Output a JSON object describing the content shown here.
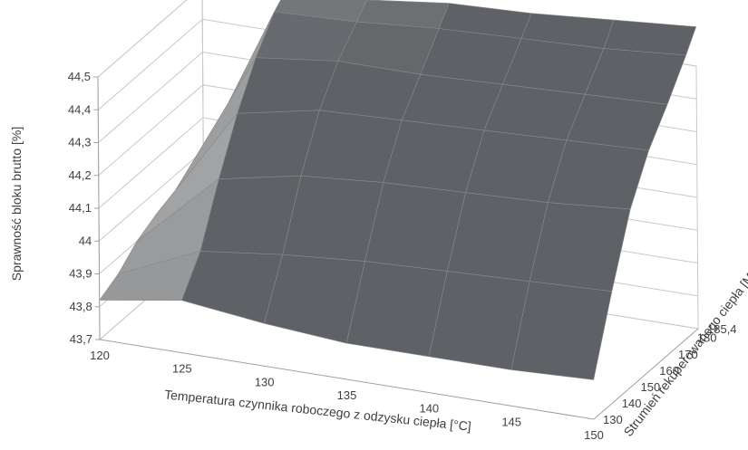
{
  "chart_data": {
    "type": "surface",
    "title": "",
    "xlabel": "Temperatura czynnika roboczego z odzysku ciepła [°C]",
    "ylabel": "Strumień rekuperowanego ciepła [MW]",
    "zlabel": "Sprawność bloku brutto [%]",
    "x_ticks": [
      "120",
      "125",
      "130",
      "135",
      "140",
      "145",
      "150"
    ],
    "y_ticks": [
      "130",
      "140",
      "150",
      "160",
      "170",
      "180",
      "185,4"
    ],
    "z_ticks": [
      "43,7",
      "43,8",
      "43,9",
      "44",
      "44,1",
      "44,2",
      "44,3",
      "44,4",
      "44,5"
    ],
    "xlim": [
      120,
      150
    ],
    "ylim": [
      130,
      185.4
    ],
    "zlim": [
      43.7,
      44.5
    ],
    "x": [
      120,
      125,
      130,
      135,
      140,
      145,
      150
    ],
    "y": [
      130,
      140,
      150,
      160,
      170,
      180,
      185.4
    ],
    "z": [
      [
        43.82,
        43.86,
        43.83,
        43.81,
        43.81,
        43.81,
        43.82
      ],
      [
        43.85,
        43.96,
        43.99,
        44.01,
        44.02,
        44.03,
        44.04
      ],
      [
        43.9,
        44.13,
        44.18,
        44.2,
        44.21,
        44.22,
        44.24
      ],
      [
        43.93,
        44.28,
        44.33,
        44.34,
        44.35,
        44.36,
        44.37
      ],
      [
        43.95,
        44.4,
        44.43,
        44.43,
        44.44,
        44.45,
        44.46
      ],
      [
        43.96,
        44.49,
        44.5,
        44.52,
        44.53,
        44.54,
        44.56
      ],
      [
        43.97,
        44.52,
        44.54,
        44.57,
        44.58,
        44.6,
        44.62
      ]
    ],
    "colors": {
      "surface_light": "#b9b9b9",
      "surface_dark": "#5e6266",
      "edge": "#8a8a8a",
      "grid": "#c8c8c8",
      "text": "#404040"
    }
  }
}
